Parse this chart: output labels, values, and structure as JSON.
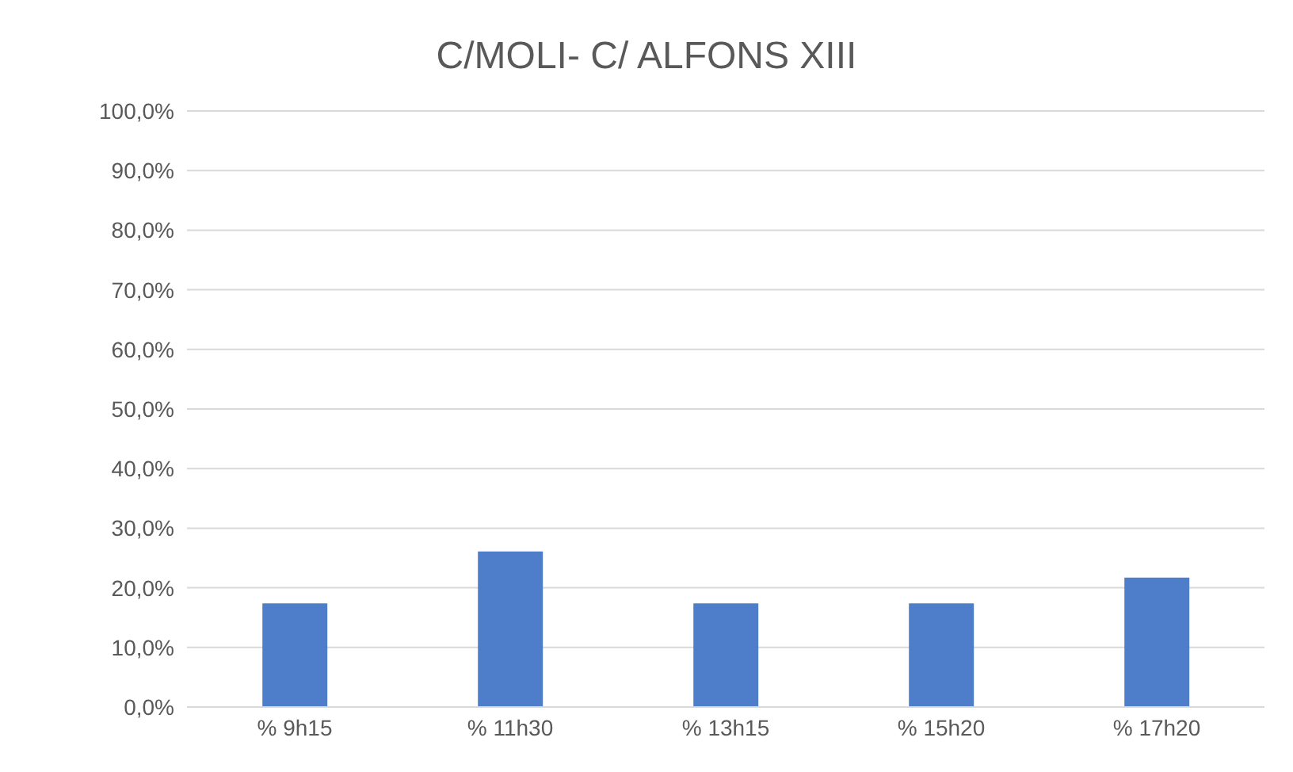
{
  "chart_data": {
    "type": "bar",
    "title": "C/MOLI- C/ ALFONS XIII",
    "categories": [
      "% 9h15",
      "% 11h30",
      "% 13h15",
      "% 15h20",
      "% 17h20"
    ],
    "values": [
      17.4,
      26.1,
      17.4,
      17.4,
      21.7
    ],
    "color": "#4e7dc9",
    "ylim": [
      0,
      100
    ],
    "yticks": [
      {
        "value": 0,
        "label": "0,0%"
      },
      {
        "value": 10,
        "label": "10,0%"
      },
      {
        "value": 20,
        "label": "20,0%"
      },
      {
        "value": 30,
        "label": "30,0%"
      },
      {
        "value": 40,
        "label": "40,0%"
      },
      {
        "value": 50,
        "label": "50,0%"
      },
      {
        "value": 60,
        "label": "60,0%"
      },
      {
        "value": 70,
        "label": "70,0%"
      },
      {
        "value": 80,
        "label": "80,0%"
      },
      {
        "value": 90,
        "label": "90,0%"
      },
      {
        "value": 100,
        "label": "100,0%"
      }
    ],
    "grid": "y"
  }
}
